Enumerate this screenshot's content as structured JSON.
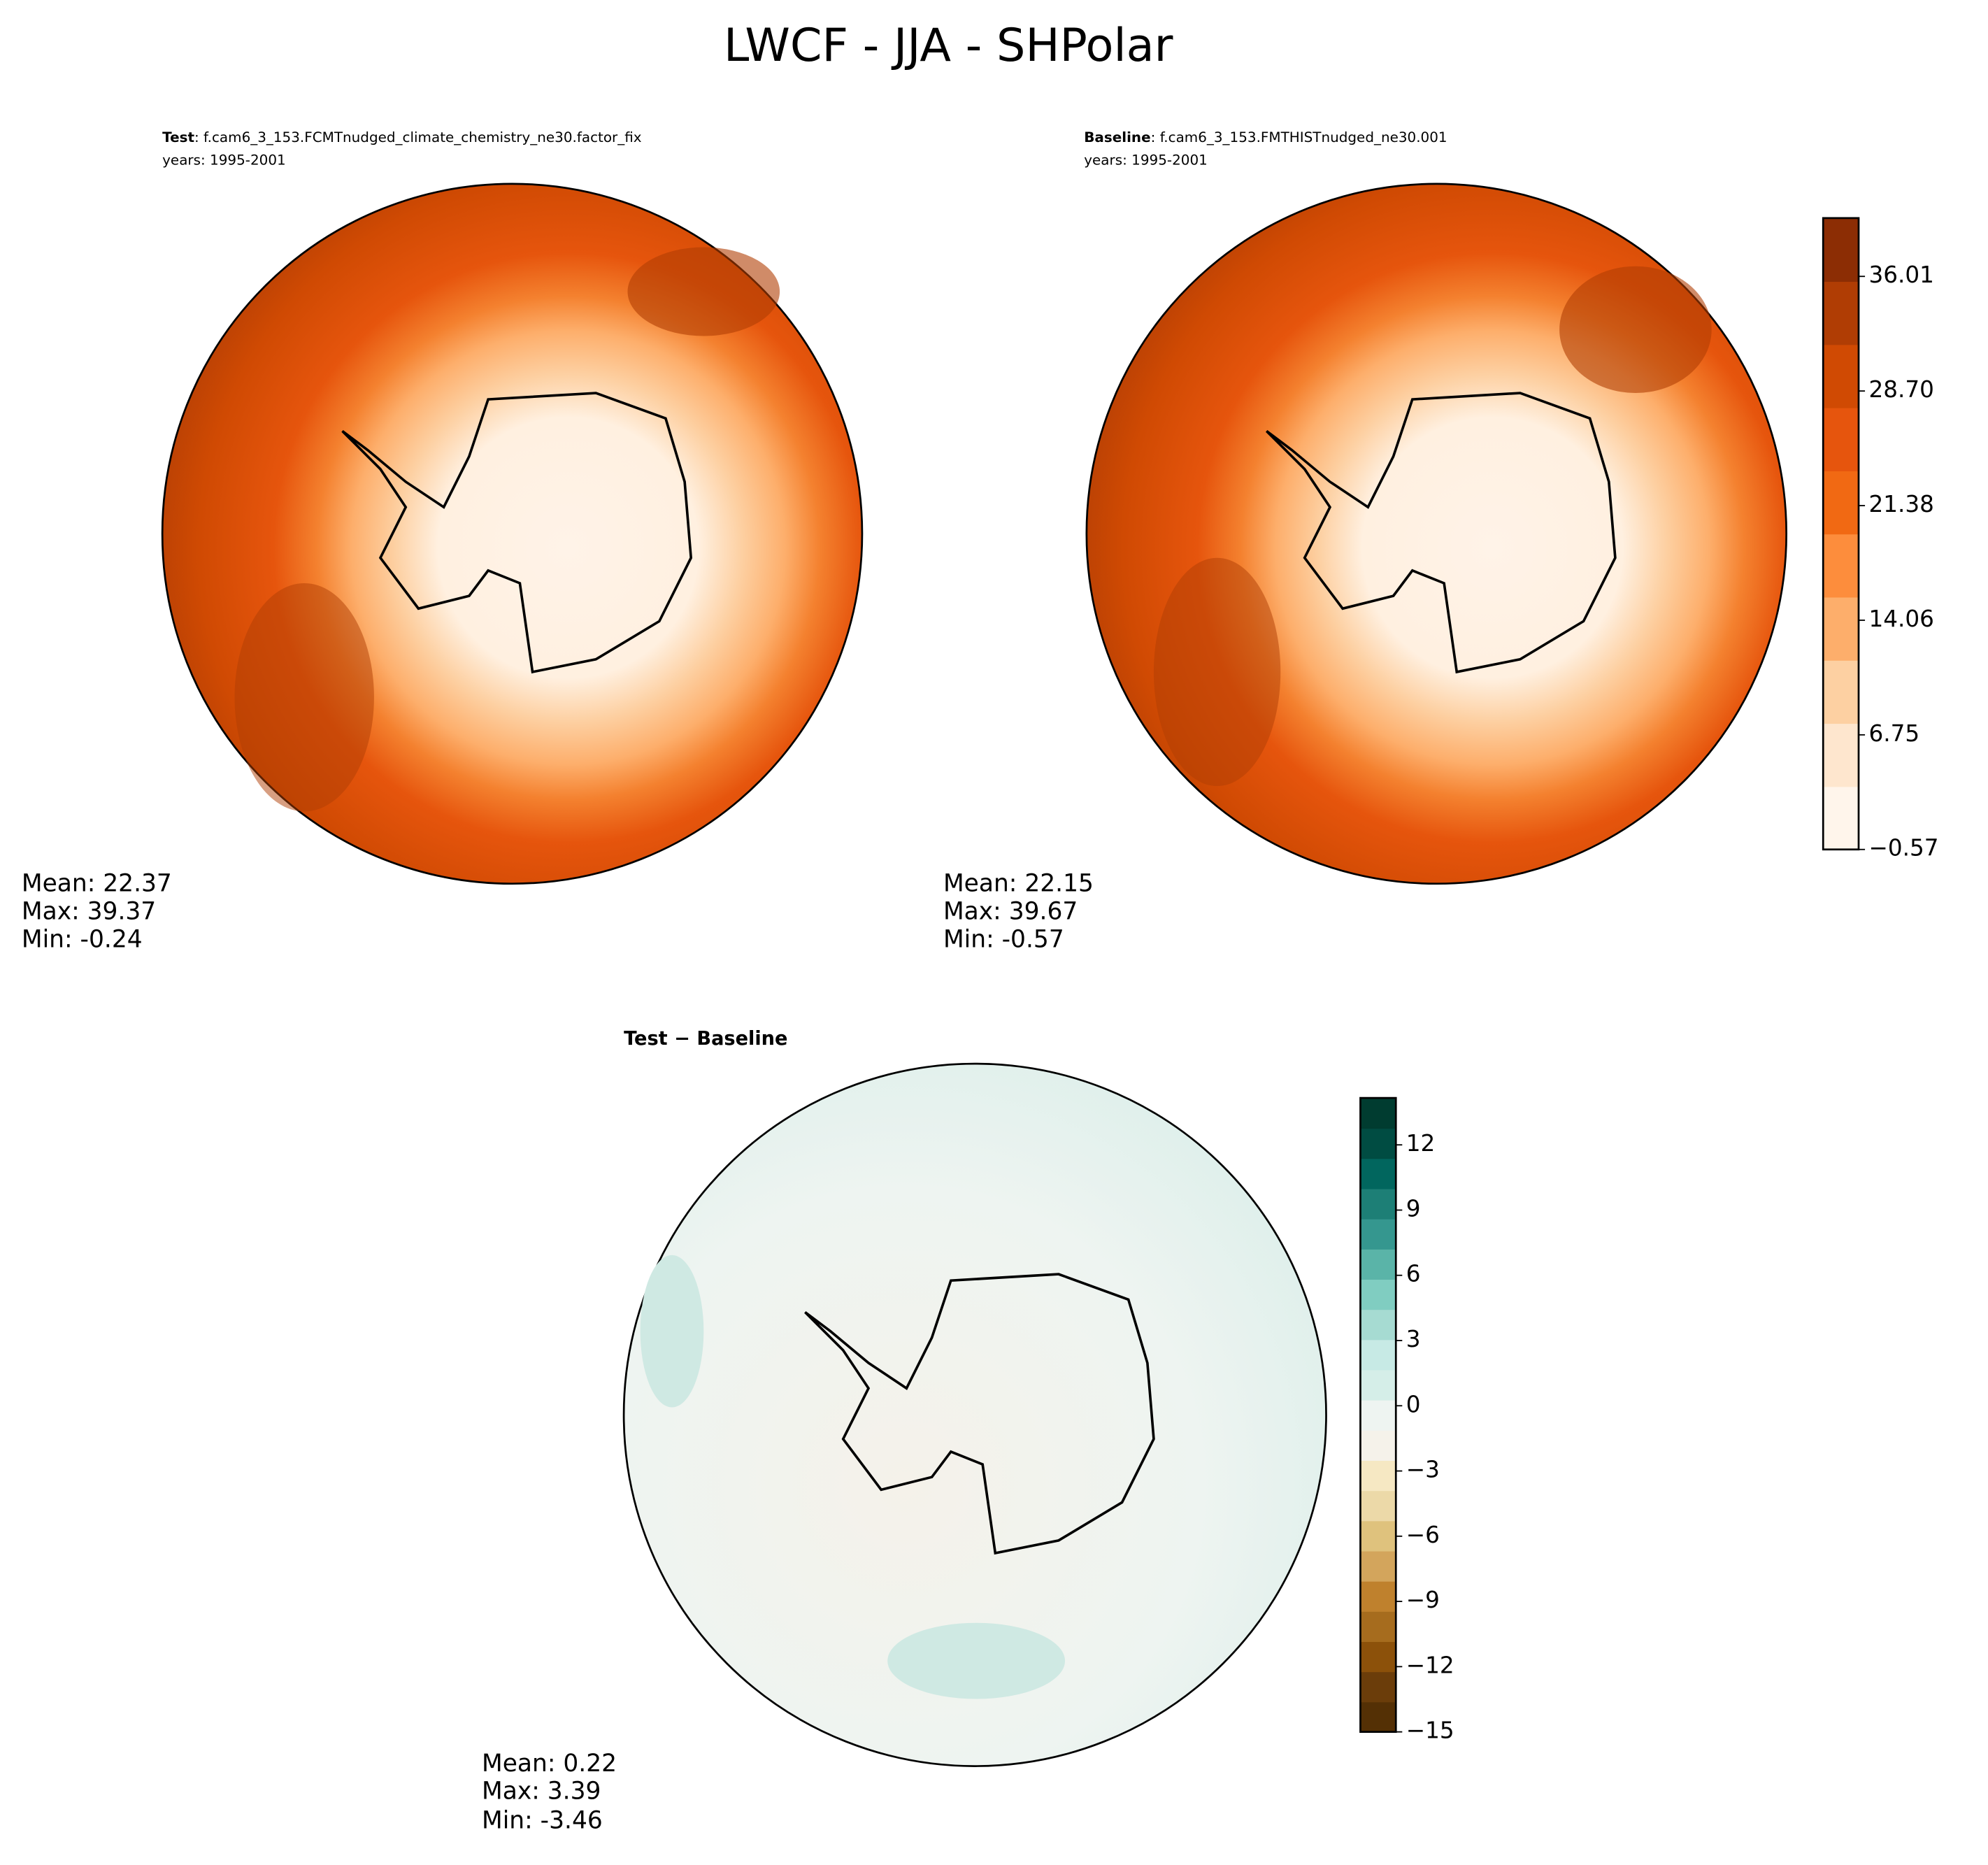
{
  "title": "LWCF - JJA - SHPolar",
  "panels": [
    {
      "label": "Test",
      "case": ": f.cam6_3_153.FCMTnudged_climate_chemistry_ne30.factor_fix",
      "years": "years: 1995-2001",
      "stats": [
        "Mean: 22.37",
        "Max: 39.37",
        "Min: -0.24"
      ]
    },
    {
      "label": "Baseline",
      "case": ": f.cam6_3_153.FMTHISTnudged_ne30.001",
      "years": "years: 1995-2001",
      "stats": [
        "Mean: 22.15",
        "Max: 39.67",
        "Min: -0.57"
      ]
    },
    {
      "label": "Test − Baseline",
      "stats": [
        "Mean:  0.22",
        "Max:  3.39",
        "Min: -3.46"
      ]
    }
  ],
  "colorbars": [
    {
      "ticks": [
        "36.01",
        "28.70",
        "21.38",
        "14.06",
        "6.75",
        "−0.57"
      ]
    },
    {
      "ticks": [
        "12",
        "9",
        "6",
        "3",
        "0",
        "−3",
        "−6",
        "−9",
        "−12",
        "−15"
      ]
    }
  ]
}
